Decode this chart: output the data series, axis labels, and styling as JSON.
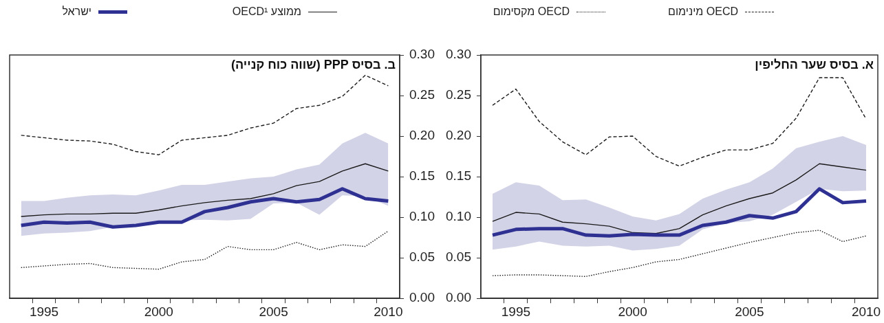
{
  "chart_data": [
    {
      "type": "line",
      "title": "א. בסיס שער החליפין",
      "legend": "top",
      "marker": "none",
      "x": [
        1994,
        1995,
        1996,
        1997,
        1998,
        1999,
        2000,
        2001,
        2002,
        2003,
        2004,
        2005,
        2006,
        2007,
        2008,
        2009,
        2010
      ],
      "xlim": [
        1993.5,
        2010.5
      ],
      "xticks": [
        {
          "value": 1994.5,
          "label": null
        },
        1995,
        {
          "value": 1995.5,
          "label": null
        },
        {
          "value": 1996.5,
          "label": null
        },
        {
          "value": 1997.5,
          "label": null
        },
        {
          "value": 1998.5,
          "label": null
        },
        {
          "value": 1999.5,
          "label": null
        },
        2000,
        {
          "value": 2000.5,
          "label": null
        },
        {
          "value": 2001.5,
          "label": null
        },
        {
          "value": 2002.5,
          "label": null
        },
        {
          "value": 2003.5,
          "label": null
        },
        {
          "value": 2004.5,
          "label": null
        },
        2005,
        {
          "value": 2005.5,
          "label": null
        },
        {
          "value": 2006.5,
          "label": null
        },
        {
          "value": 2007.5,
          "label": null
        },
        {
          "value": 2008.5,
          "label": null
        },
        {
          "value": 2009.5,
          "label": null
        },
        2010
      ],
      "ylim": [
        0,
        0.3
      ],
      "yticks": [
        {
          "value": 0,
          "label": "0.00"
        },
        {
          "value": 0.05,
          "label": "0.05"
        },
        {
          "value": 0.1,
          "label": "0.10"
        },
        {
          "value": 0.15,
          "label": "0.15"
        },
        {
          "value": 0.2,
          "label": "0.20"
        },
        {
          "value": 0.25,
          "label": "0.25"
        },
        {
          "value": 0.3,
          "label": "0.30"
        }
      ],
      "series": [
        {
          "name": "OECD מינימום",
          "color": "#1a1a1a",
          "line_style": "dashed",
          "values": [
            0.238,
            0.258,
            0.218,
            0.193,
            0.177,
            0.199,
            0.2,
            0.175,
            0.163,
            0.174,
            0.183,
            0.183,
            0.191,
            0.222,
            0.272,
            0.272,
            0.221
          ]
        },
        {
          "name": "OECD מקסימום",
          "color": "#1a1a1a",
          "line_style": "dotted",
          "values": [
            0.028,
            0.029,
            0.029,
            0.028,
            0.027,
            0.033,
            0.038,
            0.045,
            0.048,
            0.055,
            0.062,
            0.069,
            0.075,
            0.081,
            0.084,
            0.07,
            0.077
          ]
        },
        {
          "name": "ממוצע OECD¹",
          "color": "#1a1a1a",
          "line_style": "solid",
          "values": [
            0.095,
            0.106,
            0.104,
            0.094,
            0.092,
            0.089,
            0.081,
            0.08,
            0.086,
            0.103,
            0.114,
            0.123,
            0.13,
            0.146,
            0.166,
            0.162,
            0.158
          ],
          "lower": [
            0.06,
            0.064,
            0.07,
            0.065,
            0.064,
            0.065,
            0.059,
            0.061,
            0.065,
            0.085,
            0.093,
            0.095,
            0.103,
            0.119,
            0.135,
            0.132,
            0.133
          ],
          "upper": [
            0.129,
            0.143,
            0.139,
            0.121,
            0.122,
            0.112,
            0.101,
            0.096,
            0.104,
            0.123,
            0.134,
            0.143,
            0.16,
            0.185,
            0.193,
            0.2,
            0.189
          ]
        },
        {
          "name": "ישראל",
          "color": "#2e3192",
          "line_style": "solid",
          "values": [
            0.078,
            0.085,
            0.086,
            0.086,
            0.078,
            0.077,
            0.079,
            0.078,
            0.078,
            0.09,
            0.094,
            0.102,
            0.099,
            0.107,
            0.135,
            0.118,
            0.12
          ]
        }
      ]
    },
    {
      "type": "line",
      "title": "ב. בסיס PPP (שווה כוח קנייה)",
      "marker": "none",
      "x": [
        1994,
        1995,
        1996,
        1997,
        1998,
        1999,
        2000,
        2001,
        2002,
        2003,
        2004,
        2005,
        2006,
        2007,
        2008,
        2009,
        2010
      ],
      "xlim": [
        1993.5,
        2010.5
      ],
      "xticks": [
        {
          "value": 1994.5,
          "label": null
        },
        1995,
        {
          "value": 1995.5,
          "label": null
        },
        {
          "value": 1996.5,
          "label": null
        },
        {
          "value": 1997.5,
          "label": null
        },
        {
          "value": 1998.5,
          "label": null
        },
        {
          "value": 1999.5,
          "label": null
        },
        2000,
        {
          "value": 2000.5,
          "label": null
        },
        {
          "value": 2001.5,
          "label": null
        },
        {
          "value": 2002.5,
          "label": null
        },
        {
          "value": 2003.5,
          "label": null
        },
        {
          "value": 2004.5,
          "label": null
        },
        2005,
        {
          "value": 2005.5,
          "label": null
        },
        {
          "value": 2006.5,
          "label": null
        },
        {
          "value": 2007.5,
          "label": null
        },
        {
          "value": 2008.5,
          "label": null
        },
        {
          "value": 2009.5,
          "label": null
        },
        2010
      ],
      "ylim": [
        0,
        0.3
      ],
      "yticks": [
        {
          "value": 0,
          "label": "0.00"
        },
        {
          "value": 0.05,
          "label": "0.05"
        },
        {
          "value": 0.1,
          "label": "0.10"
        },
        {
          "value": 0.15,
          "label": "0.15"
        },
        {
          "value": 0.2,
          "label": "0.20"
        },
        {
          "value": 0.25,
          "label": "0.25"
        },
        {
          "value": 0.3,
          "label": "0.30"
        }
      ],
      "series": [
        {
          "color": "#1a1a1a",
          "line_style": "dashed",
          "values": [
            0.201,
            0.198,
            0.195,
            0.194,
            0.19,
            0.181,
            0.177,
            0.195,
            0.198,
            0.201,
            0.21,
            0.216,
            0.234,
            0.238,
            0.249,
            0.275,
            0.262
          ]
        },
        {
          "color": "#1a1a1a",
          "line_style": "dotted",
          "values": [
            0.038,
            0.04,
            0.042,
            0.043,
            0.038,
            0.037,
            0.036,
            0.045,
            0.048,
            0.064,
            0.06,
            0.06,
            0.069,
            0.06,
            0.066,
            0.064,
            0.083
          ]
        },
        {
          "color": "#1a1a1a",
          "line_style": "solid",
          "values": [
            0.101,
            0.103,
            0.104,
            0.104,
            0.105,
            0.105,
            0.109,
            0.114,
            0.118,
            0.121,
            0.123,
            0.129,
            0.139,
            0.144,
            0.157,
            0.166,
            0.157
          ],
          "lower": [
            0.077,
            0.08,
            0.081,
            0.083,
            0.088,
            0.092,
            0.094,
            0.096,
            0.097,
            0.096,
            0.098,
            0.117,
            0.118,
            0.103,
            0.127,
            0.126,
            0.114
          ],
          "upper": [
            0.12,
            0.12,
            0.124,
            0.127,
            0.128,
            0.127,
            0.133,
            0.14,
            0.14,
            0.144,
            0.148,
            0.15,
            0.159,
            0.165,
            0.191,
            0.204,
            0.191
          ]
        },
        {
          "color": "#2e3192",
          "line_style": "solid",
          "values": [
            0.09,
            0.094,
            0.093,
            0.094,
            0.088,
            0.09,
            0.094,
            0.094,
            0.107,
            0.112,
            0.119,
            0.123,
            0.119,
            0.122,
            0.135,
            0.123,
            0.12
          ]
        }
      ]
    }
  ]
}
